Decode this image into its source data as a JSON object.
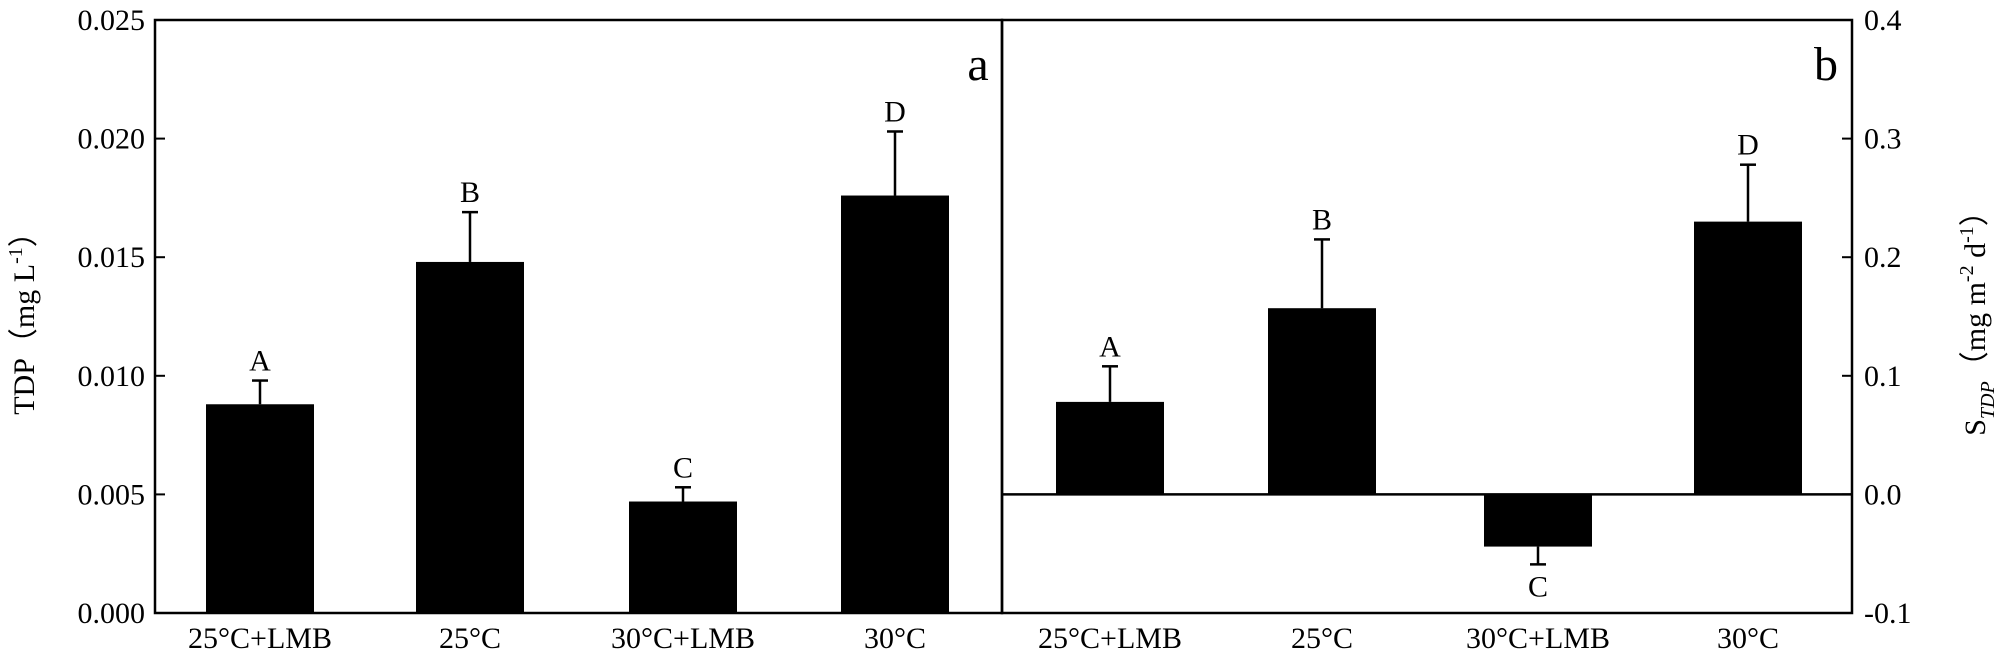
{
  "chart_data": [
    {
      "type": "bar",
      "panel_label": "a",
      "categories": [
        "25°C+LMB",
        "25°C",
        "30°C+LMB",
        "30°C"
      ],
      "values": [
        0.0088,
        0.0148,
        0.0047,
        0.0176
      ],
      "errors": [
        0.001,
        0.0021,
        0.0006,
        0.0027
      ],
      "significance": [
        "A",
        "B",
        "C",
        "D"
      ],
      "ylabel_main": "TDP",
      "ylabel_unit_pre": "（mg L",
      "ylabel_unit_sup": "-1",
      "ylabel_unit_post": "）",
      "ylim": [
        0,
        0.025
      ],
      "yticks": [
        "0.000",
        "0.005",
        "0.010",
        "0.015",
        "0.020",
        "0.025"
      ],
      "ytick_values": [
        0,
        0.005,
        0.01,
        0.015,
        0.02,
        0.025
      ],
      "axis_side": "left"
    },
    {
      "type": "bar",
      "panel_label": "b",
      "categories": [
        "25°C+LMB",
        "25°C",
        "30°C+LMB",
        "30°C"
      ],
      "values": [
        0.078,
        0.157,
        -0.044,
        0.23
      ],
      "errors": [
        0.03,
        0.058,
        0.015,
        0.048
      ],
      "significance": [
        "A",
        "B",
        "C",
        "D"
      ],
      "ylabel_main": "S",
      "ylabel_sub": "TDP",
      "ylabel_unit_pre": "（mg m",
      "ylabel_unit_sup1": "-2",
      "ylabel_unit_mid": " d",
      "ylabel_unit_sup2": "-1",
      "ylabel_unit_post": "）",
      "ylim": [
        -0.1,
        0.4
      ],
      "yticks": [
        "-0.1",
        "0.0",
        "0.1",
        "0.2",
        "0.3",
        "0.4"
      ],
      "ytick_values": [
        -0.1,
        0,
        0.1,
        0.2,
        0.3,
        0.4
      ],
      "axis_side": "right",
      "zero_line": true
    }
  ]
}
